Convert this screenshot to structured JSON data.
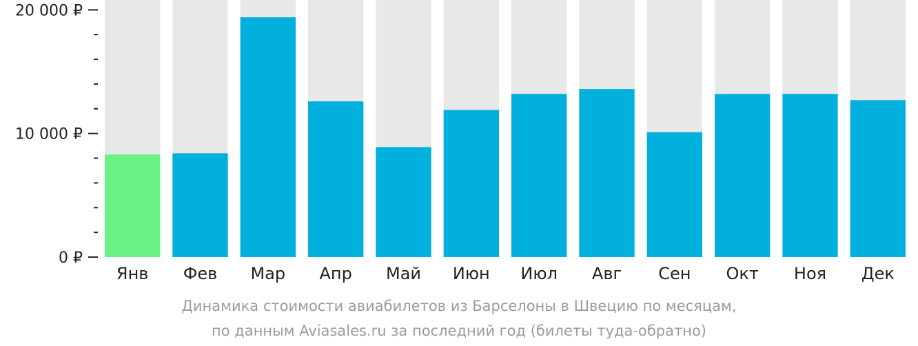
{
  "chart_data": {
    "type": "bar",
    "categories": [
      "Янв",
      "Фев",
      "Мар",
      "Апр",
      "Май",
      "Июн",
      "Июл",
      "Авг",
      "Сен",
      "Окт",
      "Ноя",
      "Дек"
    ],
    "values": [
      8300,
      8400,
      19400,
      12600,
      8900,
      11900,
      13200,
      13600,
      10100,
      13200,
      13200,
      12700
    ],
    "highlight_index": 0,
    "ylim": [
      0,
      20800
    ],
    "yticks": [
      {
        "value": 0,
        "label": "0 ₽"
      },
      {
        "value": 10000,
        "label": "10 000 ₽"
      },
      {
        "value": 20000,
        "label": "20 000 ₽"
      }
    ],
    "minor_tick_step": 2000,
    "grid": false,
    "legend": "none",
    "colors": {
      "bar": "#02b0dd",
      "highlight": "#6bf286",
      "background_bar": "#e8e8e8",
      "tick": "#222222"
    }
  },
  "caption": {
    "line1": "Динамика стоимости авиабилетов из Барселоны в Швецию по месяцам,",
    "line2": "по данным Aviasales.ru за последний год (билеты туда-обратно)"
  }
}
